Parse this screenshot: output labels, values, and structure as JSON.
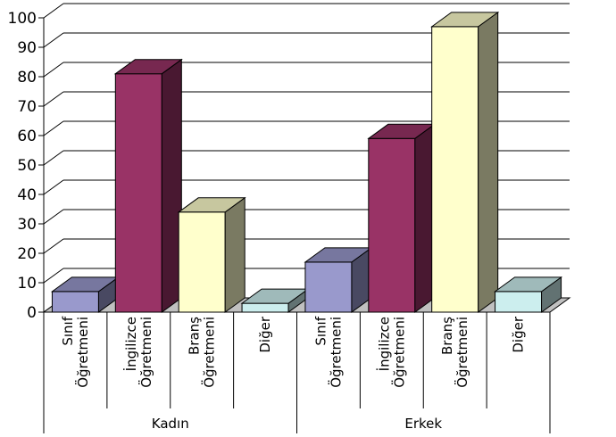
{
  "chart_data": {
    "type": "bar",
    "style": "3d-column",
    "groups": [
      {
        "label": "Kadın",
        "bars": [
          {
            "label": [
              "Sınıf",
              "Öğretmeni"
            ],
            "value": 7,
            "color": "#9999cc"
          },
          {
            "label": [
              "İngilizce",
              "Öğretmeni"
            ],
            "value": 81,
            "color": "#993366"
          },
          {
            "label": [
              "Branş",
              "Öğretmeni"
            ],
            "value": 34,
            "color": "#ffffcc"
          },
          {
            "label": [
              "Diğer"
            ],
            "value": 3,
            "color": "#cceeee"
          }
        ]
      },
      {
        "label": "Erkek",
        "bars": [
          {
            "label": [
              "Sınıf",
              "Öğretmeni"
            ],
            "value": 17,
            "color": "#9999cc"
          },
          {
            "label": [
              "İngilizce",
              "Öğretmeni"
            ],
            "value": 59,
            "color": "#993366"
          },
          {
            "label": [
              "Branş",
              "Öğretmeni"
            ],
            "value": 97,
            "color": "#ffffcc"
          },
          {
            "label": [
              "Diğer"
            ],
            "value": 7,
            "color": "#cceeee"
          }
        ]
      }
    ],
    "yticks": [
      "0",
      "10",
      "20",
      "30",
      "40",
      "50",
      "60",
      "70",
      "80",
      "90",
      "100"
    ],
    "ylim": [
      0,
      100
    ],
    "grid": true,
    "legend": "none",
    "title": "",
    "xlabel": "",
    "ylabel": ""
  }
}
